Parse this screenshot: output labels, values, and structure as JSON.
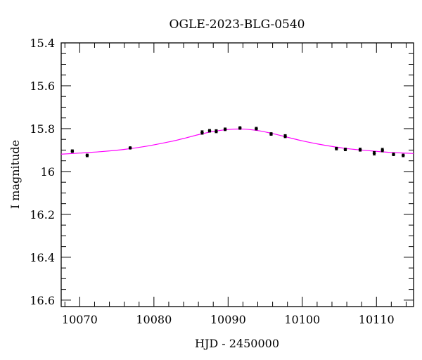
{
  "chart_data": {
    "type": "scatter",
    "title": "OGLE-2023-BLG-0540",
    "xlabel": "HJD - 2450000",
    "ylabel": "I magnitude",
    "xlim": [
      10067.5,
      10115
    ],
    "ylim": [
      15.4,
      16.63
    ],
    "y_inverted": true,
    "grid": false,
    "x_ticks": [
      10070,
      10080,
      10090,
      10100,
      10110
    ],
    "x_tick_labels": [
      "10070",
      "10080",
      "10090",
      "10100",
      "10110"
    ],
    "y_ticks": [
      15.4,
      15.6,
      15.8,
      16.0,
      16.2,
      16.4,
      16.6
    ],
    "y_tick_labels": [
      "15.4",
      "15.6",
      "15.8",
      "16",
      "16.2",
      "16.4",
      "16.6"
    ],
    "series": [
      {
        "kind": "points_with_errorbars",
        "color": "#000000",
        "x": [
          10069.0,
          10071.0,
          10076.8,
          10086.5,
          10087.5,
          10088.4,
          10089.6,
          10091.6,
          10093.8,
          10095.8,
          10097.7,
          10104.6,
          10105.8,
          10107.8,
          10109.7,
          10110.8,
          10112.3,
          10113.6
        ],
        "y": [
          15.905,
          15.925,
          15.89,
          15.818,
          15.81,
          15.812,
          15.803,
          15.797,
          15.8,
          15.825,
          15.835,
          15.893,
          15.897,
          15.898,
          15.915,
          15.9,
          15.92,
          15.925
        ],
        "yerr": [
          0.006,
          0.006,
          0.005,
          0.008,
          0.006,
          0.007,
          0.006,
          0.006,
          0.006,
          0.006,
          0.007,
          0.006,
          0.006,
          0.007,
          0.008,
          0.008,
          0.006,
          0.006
        ]
      },
      {
        "kind": "model_curve",
        "color": "#ff00ff",
        "x": [
          10067.5,
          10070,
          10073,
          10076,
          10079,
          10082,
          10084,
          10086,
          10088,
          10090,
          10092,
          10094,
          10096,
          10098,
          10100,
          10102,
          10104,
          10106,
          10108,
          10110,
          10112,
          10115
        ],
        "y": [
          15.919,
          15.914,
          15.907,
          15.897,
          15.882,
          15.862,
          15.846,
          15.828,
          15.813,
          15.804,
          15.802,
          15.809,
          15.823,
          15.84,
          15.857,
          15.871,
          15.883,
          15.893,
          15.9,
          15.906,
          15.911,
          15.916
        ]
      }
    ]
  }
}
